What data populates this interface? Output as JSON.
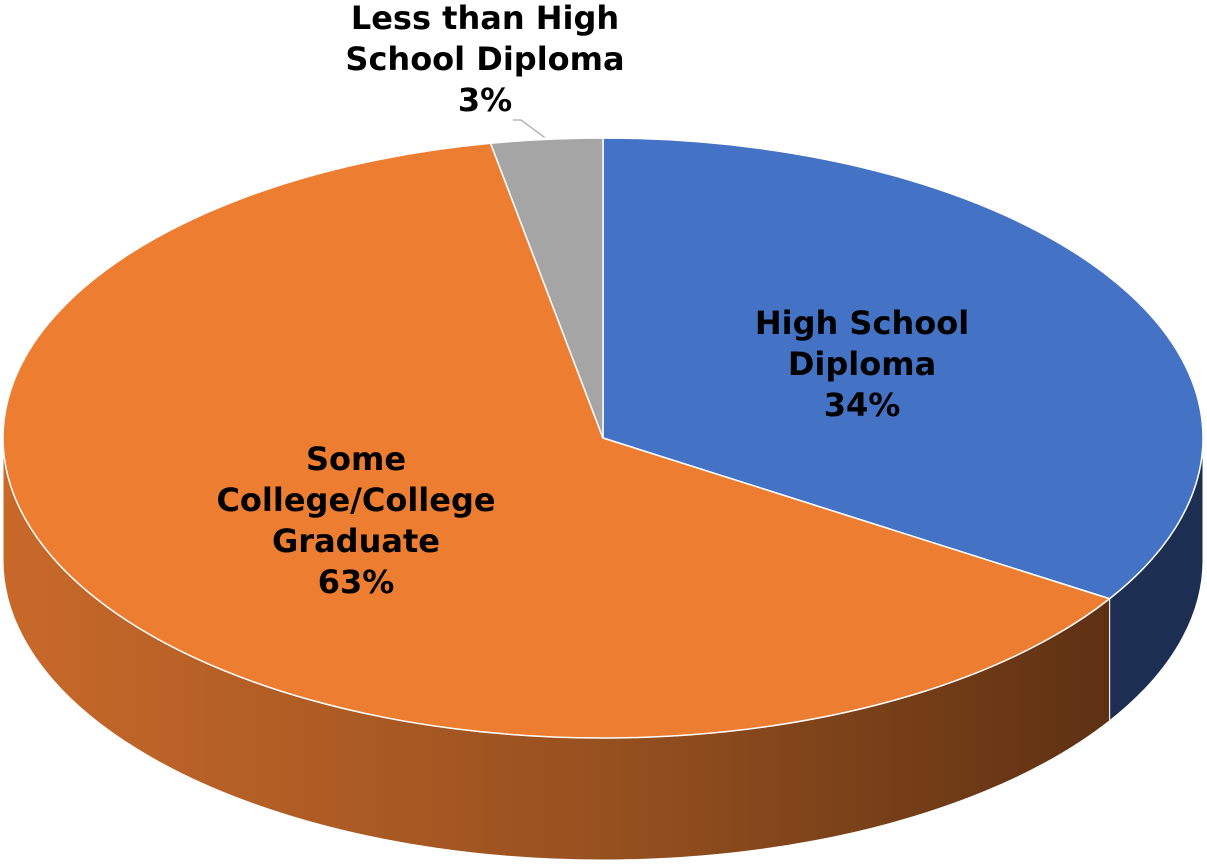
{
  "chart_data": {
    "type": "pie",
    "style": "3d",
    "title": "",
    "legend": "none",
    "slices": [
      {
        "label_lines": [
          "High School",
          "Diploma"
        ],
        "percent_text": "34%",
        "value": 34,
        "color": "#4472C4",
        "side_color": "#1C2E52"
      },
      {
        "label_lines": [
          "Some",
          "College/College",
          "Graduate"
        ],
        "percent_text": "63%",
        "value": 63,
        "color": "#ED7D31",
        "side_color": "#A3521B"
      },
      {
        "label_lines": [
          "Less than High",
          "School Diploma"
        ],
        "percent_text": "3%",
        "value": 3,
        "color": "#A5A5A5",
        "side_color": "#6E6E6E"
      }
    ]
  }
}
